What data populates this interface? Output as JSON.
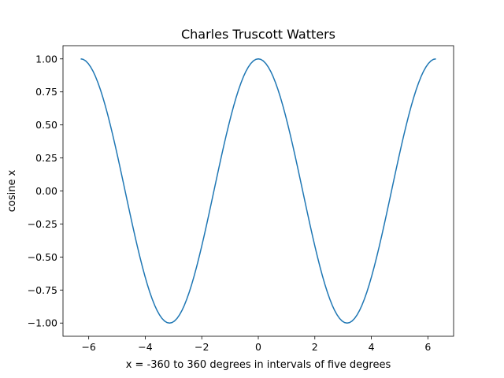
{
  "chart_data": {
    "type": "line",
    "title": "Charles Truscott Watters",
    "xlabel": "x = -360 to 360 degrees in intervals of five degrees",
    "ylabel": "cosine x",
    "xlim": [
      -6.91,
      6.91
    ],
    "ylim": [
      -1.1,
      1.1
    ],
    "grid": false,
    "x_ticks": [
      -6,
      -4,
      -2,
      0,
      2,
      4,
      6
    ],
    "x_tick_labels": [
      "−6",
      "−4",
      "−2",
      "0",
      "2",
      "4",
      "6"
    ],
    "y_ticks": [
      -1.0,
      -0.75,
      -0.5,
      -0.25,
      0.0,
      0.25,
      0.5,
      0.75,
      1.0
    ],
    "y_tick_labels": [
      "−1.00",
      "−0.75",
      "−0.50",
      "−0.25",
      "0.00",
      "0.25",
      "0.50",
      "0.75",
      "1.00"
    ],
    "series": [
      {
        "name": "cos(x)",
        "color": "#1f77b4",
        "function": "cos",
        "x_start_degrees": -360,
        "x_end_degrees": 360,
        "x_step_degrees": 5
      }
    ]
  }
}
